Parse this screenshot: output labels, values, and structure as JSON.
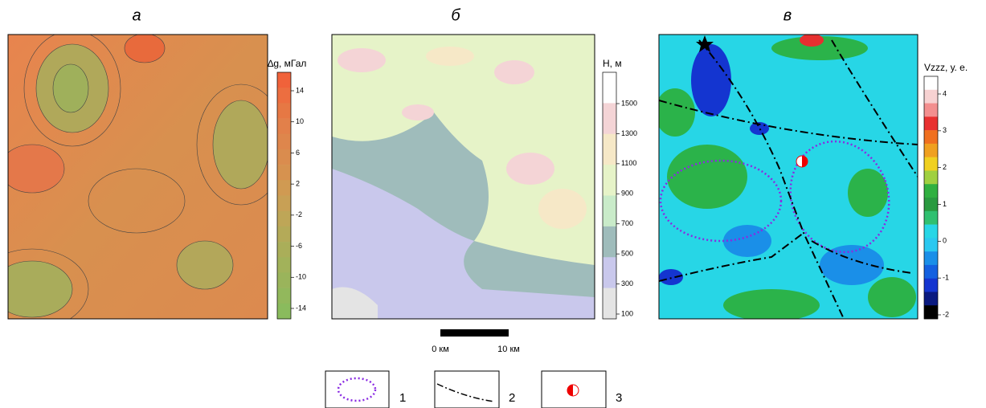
{
  "panels": [
    {
      "letter": "а",
      "colorbar": {
        "label": "∆g, мГал",
        "ticks": [
          14,
          10,
          6,
          2,
          -2,
          -6,
          -10,
          -14
        ]
      }
    },
    {
      "letter": "б",
      "colorbar": {
        "label": "H, м",
        "ticks": [
          1500,
          1300,
          1100,
          900,
          700,
          500,
          300,
          100
        ]
      }
    },
    {
      "letter": "в",
      "colorbar": {
        "label": "Vzzz, у. е.",
        "ticks": [
          4,
          3,
          2,
          1,
          0,
          -1,
          -2
        ]
      }
    }
  ],
  "scale_bar": {
    "start": "0 км",
    "end": "10 км"
  },
  "legend": [
    "1",
    "2",
    "3"
  ]
}
